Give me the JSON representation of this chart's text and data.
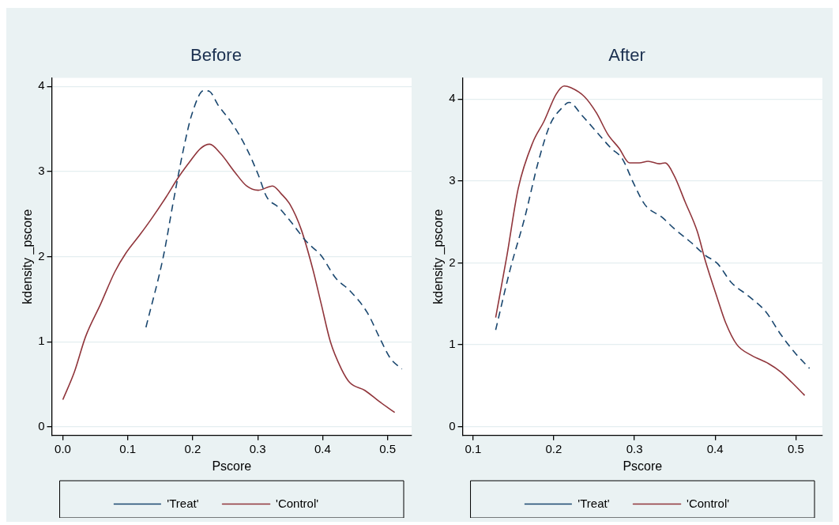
{
  "chart_data": [
    {
      "type": "line",
      "title": "Before",
      "xlabel": "Pscore",
      "ylabel": "kdensity _pscore",
      "xlim": [
        -0.017,
        0.537
      ],
      "ylim": [
        -0.1,
        4.1
      ],
      "xticks": [
        {
          "value": 0,
          "label": "0.0"
        },
        0.1,
        0.2,
        0.3,
        0.4,
        0.5
      ],
      "yticks": [
        0,
        1,
        2,
        3,
        4
      ],
      "grid": "y",
      "legend": "bottom",
      "marker": "none",
      "series": [
        {
          "name": "'Treat'",
          "color": "#1a476f",
          "line_style": "dashed",
          "x": [
            0.128,
            0.155,
            0.17,
            0.186,
            0.199,
            0.217,
            0.226,
            0.239,
            0.261,
            0.283,
            0.301,
            0.314,
            0.332,
            0.35,
            0.376,
            0.398,
            0.42,
            0.442,
            0.469,
            0.487,
            0.504,
            0.522
          ],
          "values": [
            1.17,
            2.01,
            2.64,
            3.27,
            3.68,
            3.95,
            3.94,
            3.78,
            3.56,
            3.27,
            2.96,
            2.7,
            2.58,
            2.42,
            2.17,
            2.01,
            1.75,
            1.6,
            1.34,
            1.06,
            0.81,
            0.68
          ]
        },
        {
          "name": "'Control'",
          "color": "#90353b",
          "line_style": "solid",
          "x": [
            0,
            0.018,
            0.035,
            0.058,
            0.08,
            0.097,
            0.119,
            0.137,
            0.159,
            0.177,
            0.195,
            0.212,
            0.226,
            0.243,
            0.265,
            0.283,
            0.301,
            0.323,
            0.336,
            0.35,
            0.367,
            0.385,
            0.398,
            0.412,
            0.429,
            0.442,
            0.465,
            0.487,
            0.511
          ],
          "values": [
            0.32,
            0.65,
            1.06,
            1.44,
            1.82,
            2.04,
            2.26,
            2.45,
            2.7,
            2.92,
            3.11,
            3.27,
            3.32,
            3.21,
            2.99,
            2.83,
            2.78,
            2.83,
            2.74,
            2.61,
            2.32,
            1.85,
            1.44,
            1.0,
            0.68,
            0.52,
            0.43,
            0.3,
            0.17
          ]
        }
      ]
    },
    {
      "type": "line",
      "title": "After",
      "xlabel": "Pscore",
      "ylabel": "kdensity _pscore",
      "xlim": [
        0.087,
        0.533
      ],
      "ylim": [
        -0.11,
        4.26
      ],
      "xticks": [
        0.1,
        0.2,
        0.3,
        0.4,
        0.5
      ],
      "yticks": [
        0,
        1,
        2,
        3,
        4
      ],
      "grid": "y",
      "legend": "bottom",
      "marker": "none",
      "series": [
        {
          "name": "'Treat'",
          "color": "#1a476f",
          "line_style": "dashed",
          "x": [
            0.128,
            0.146,
            0.164,
            0.181,
            0.196,
            0.21,
            0.219,
            0.235,
            0.253,
            0.271,
            0.285,
            0.299,
            0.313,
            0.335,
            0.349,
            0.37,
            0.388,
            0.403,
            0.42,
            0.442,
            0.463,
            0.481,
            0.499,
            0.517
          ],
          "values": [
            1.18,
            1.92,
            2.55,
            3.24,
            3.7,
            3.89,
            3.96,
            3.8,
            3.6,
            3.4,
            3.27,
            2.97,
            2.71,
            2.55,
            2.42,
            2.25,
            2.09,
            1.99,
            1.76,
            1.59,
            1.4,
            1.13,
            0.9,
            0.71
          ]
        },
        {
          "name": "'Control'",
          "color": "#90353b",
          "line_style": "solid",
          "x": [
            0.128,
            0.142,
            0.156,
            0.174,
            0.188,
            0.203,
            0.213,
            0.221,
            0.238,
            0.253,
            0.267,
            0.281,
            0.294,
            0.306,
            0.317,
            0.331,
            0.338,
            0.349,
            0.363,
            0.378,
            0.388,
            0.403,
            0.413,
            0.427,
            0.445,
            0.466,
            0.481,
            0.495,
            0.511
          ],
          "values": [
            1.33,
            2.09,
            2.91,
            3.47,
            3.73,
            4.06,
            4.16,
            4.14,
            4.03,
            3.83,
            3.57,
            3.4,
            3.22,
            3.22,
            3.24,
            3.21,
            3.22,
            3.07,
            2.74,
            2.38,
            2.02,
            1.56,
            1.27,
            1.0,
            0.87,
            0.77,
            0.67,
            0.54,
            0.38
          ]
        }
      ]
    }
  ]
}
